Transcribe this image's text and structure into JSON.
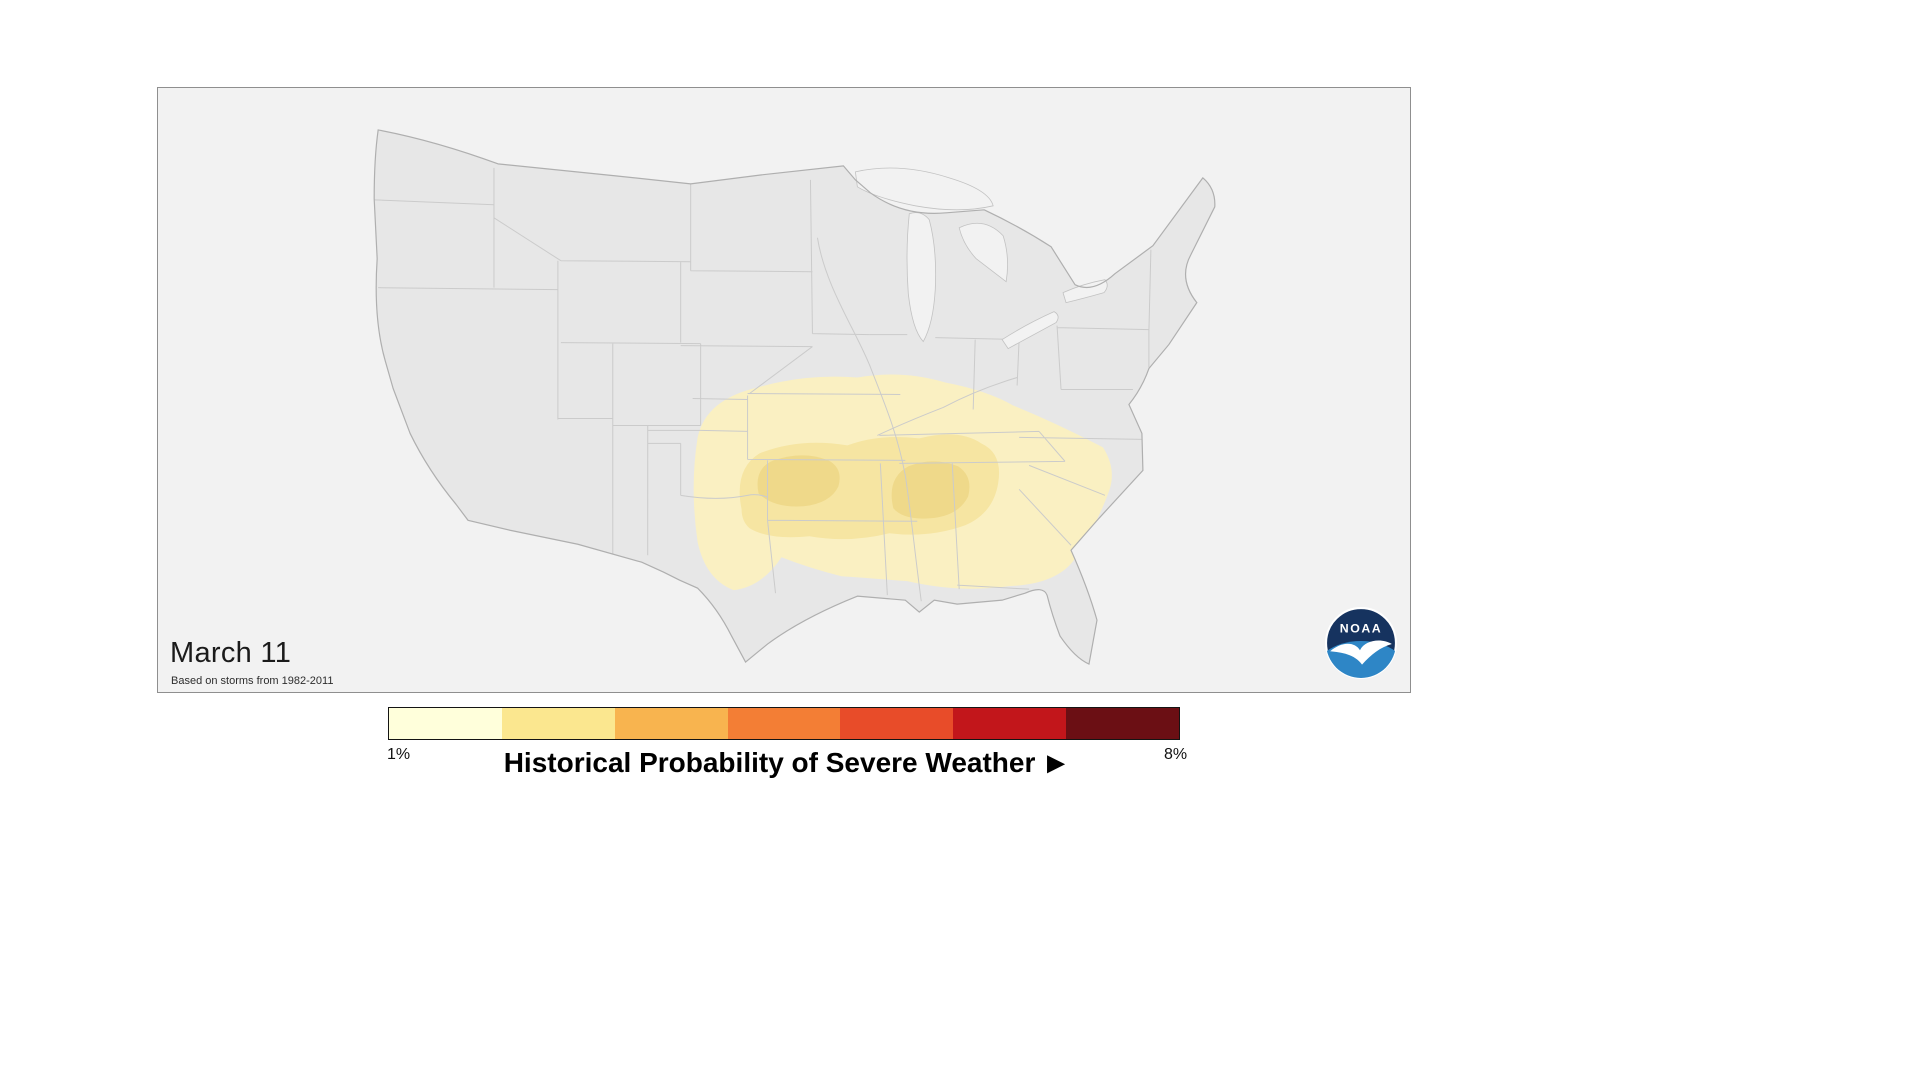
{
  "panel": {
    "date_label": "March 11",
    "source_note": "Based on storms from 1982-2011"
  },
  "logo": {
    "text": "NOAA",
    "navy": "#16335f",
    "blue": "#2e86c6",
    "gull": "#ffffff"
  },
  "legend": {
    "min_label": "1%",
    "max_label": "8%",
    "title": "Historical Probability of Severe Weather",
    "play_icon": "▶",
    "colors": [
      "#FFFFDB",
      "#FBE78F",
      "#F8B44F",
      "#F37E35",
      "#E84C29",
      "#C2161B",
      "#6B0F14"
    ]
  },
  "map_colors": {
    "background": "#F2F2F2",
    "land": "#E7E7E7",
    "state_border": "#CBCBCB",
    "outline": "#AFAFAF",
    "contour_low": "#FAF0C2",
    "contour_mid": "#F6E5A2",
    "contour_high": "#EFD98A"
  }
}
